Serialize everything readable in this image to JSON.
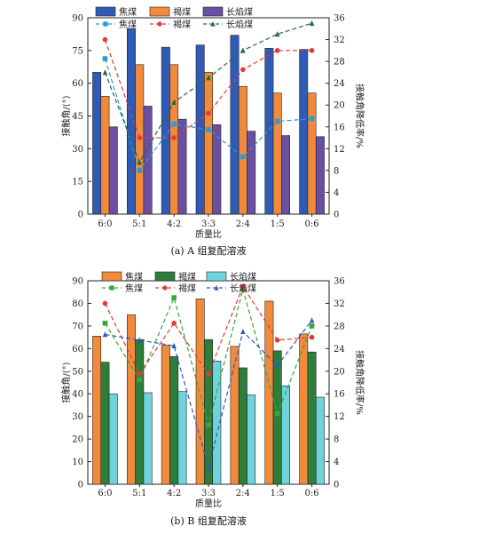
{
  "chart_data": [
    {
      "type": "bar",
      "caption": "(a) A 组复配溶液",
      "xlabel": "质量比",
      "ylabel": "接触角/(°)",
      "ylabel_right": "接触角降低率/%",
      "categories": [
        "6:0",
        "5:1",
        "4:2",
        "3:3",
        "2:4",
        "1:5",
        "0:6"
      ],
      "ylim": [
        0,
        90
      ],
      "yticks": [
        0,
        15,
        30,
        45,
        60,
        75,
        90
      ],
      "y2lim": [
        0,
        36
      ],
      "y2ticks": [
        0,
        4,
        8,
        12,
        16,
        20,
        24,
        28,
        32,
        36
      ],
      "series": [
        {
          "name": "焦煤",
          "kind": "bar",
          "color": "#2f5bb7",
          "values": [
            65,
            85,
            76.5,
            77.5,
            82,
            76,
            75.5
          ]
        },
        {
          "name": "褐煤",
          "kind": "bar",
          "color": "#f28a3c",
          "values": [
            54,
            68.5,
            68.5,
            65,
            58.5,
            55.5,
            55.5
          ]
        },
        {
          "name": "长焰煤",
          "kind": "bar",
          "color": "#6a4fa3",
          "values": [
            40,
            49.5,
            43.5,
            41,
            38,
            36,
            35.5
          ]
        },
        {
          "name": "焦煤",
          "kind": "line",
          "axis": "right",
          "color": "#2a9ad6",
          "marker": "square",
          "values": [
            28.5,
            8,
            16.5,
            15.5,
            10.5,
            17,
            17.5
          ]
        },
        {
          "name": "褐煤",
          "kind": "line",
          "axis": "right",
          "color": "#e23a3a",
          "marker": "circle",
          "values": [
            32,
            14,
            14,
            18.5,
            26.5,
            30,
            30
          ]
        },
        {
          "name": "长焰煤",
          "kind": "line",
          "axis": "right",
          "color": "#1e6e3a",
          "marker": "triangle",
          "values": [
            26,
            9.5,
            20.5,
            25,
            30,
            33,
            35
          ]
        }
      ]
    },
    {
      "type": "bar",
      "caption": "(b) B 组复配溶液",
      "xlabel": "质量比",
      "ylabel": "接触角/(°)",
      "ylabel_right": "接触角降低率/%",
      "categories": [
        "6:0",
        "5:1",
        "4:2",
        "3:3",
        "2:4",
        "1:5",
        "0:6"
      ],
      "ylim": [
        0,
        90
      ],
      "yticks": [
        0,
        10,
        20,
        30,
        40,
        50,
        60,
        70,
        80,
        90
      ],
      "y2lim": [
        0,
        36
      ],
      "y2ticks": [
        0,
        4,
        8,
        12,
        16,
        20,
        24,
        28,
        32,
        36
      ],
      "series": [
        {
          "name": "焦煤",
          "kind": "bar",
          "color": "#f28a3c",
          "values": [
            65.5,
            75,
            61.5,
            82,
            61,
            81,
            66.5
          ]
        },
        {
          "name": "褐煤",
          "kind": "bar",
          "color": "#2e7d3a",
          "values": [
            54,
            64,
            56.5,
            64,
            51.5,
            59,
            58.5
          ]
        },
        {
          "name": "长焰煤",
          "kind": "bar",
          "color": "#6fd3dc",
          "values": [
            40,
            40.5,
            41,
            54.5,
            39.5,
            43.5,
            38.5
          ]
        },
        {
          "name": "焦煤",
          "kind": "line",
          "axis": "right",
          "color": "#3aa63a",
          "marker": "square",
          "values": [
            28.5,
            18.5,
            33,
            10.5,
            34.5,
            12.5,
            28
          ]
        },
        {
          "name": "褐煤",
          "kind": "line",
          "axis": "right",
          "color": "#e23a3a",
          "marker": "circle",
          "values": [
            32,
            19.5,
            28.5,
            19.5,
            35,
            25.5,
            26
          ]
        },
        {
          "name": "长焰煤",
          "kind": "line",
          "axis": "right",
          "color": "#2f5bb7",
          "marker": "triangle",
          "values": [
            26.5,
            25.5,
            24.5,
            3,
            27,
            21,
            29
          ]
        }
      ]
    }
  ]
}
